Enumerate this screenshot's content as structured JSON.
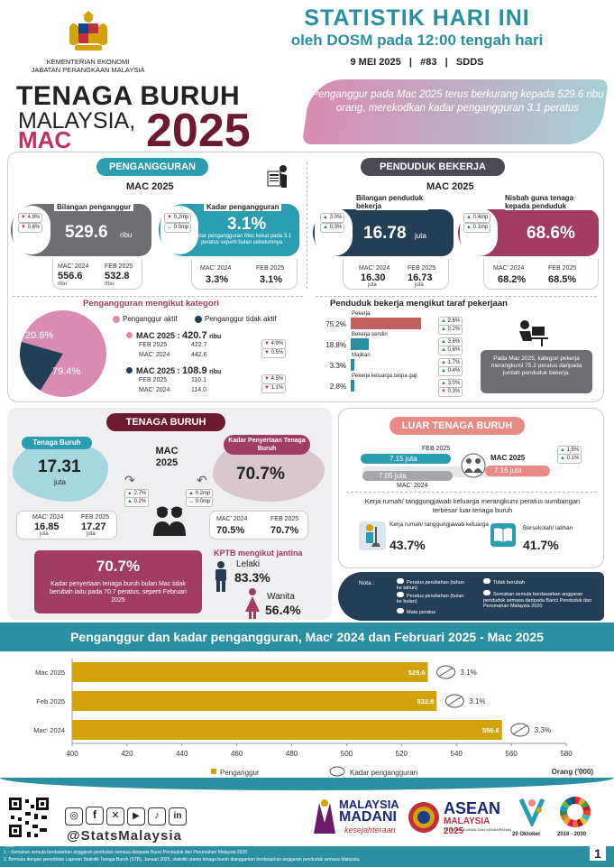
{
  "header": {
    "ministry_line1": "KEMENTERIAN EKONOMI",
    "ministry_line2": "JABATAN PERANGKAAN MALAYSIA",
    "title": "STATISTIK HARI INI",
    "subtitle": "oleh DOSM pada 12:00 tengah hari",
    "date_line": "9 MEI 2025   |   #83   |   SDDS"
  },
  "hero": {
    "line1": "TENAGA BURUH",
    "line2": "MALAYSIA,",
    "month": "MAC",
    "year": "2025",
    "banner": "Penganggur pada Mac 2025 terus berkurang kepada 529.6 ribu orang, merekodkan kadar pengangguran 3.1 peratus"
  },
  "unemployment": {
    "section": "PENGANGGURAN",
    "period": "MAC 2025",
    "count_label": "Bilangan penganggur",
    "count_value": "529.6",
    "count_unit": "ribu",
    "count_chg_yoy": "4.9%",
    "count_chg_mom": "0.6%",
    "rate_label": "Kadar pengangguran",
    "rate_value": "3.1%",
    "rate_chg_yoy": "0.2mp",
    "rate_chg_mom": "0.0mp",
    "rate_note": "Kadar pengangguran Mac kekal pada 3.1 peratus seperti bulan sebelumnya",
    "count_prev": [
      {
        "label": "MAC' 2024",
        "value": "556.6",
        "unit": "ribu"
      },
      {
        "label": "FEB 2025",
        "value": "532.8",
        "unit": "ribu"
      }
    ],
    "rate_prev": [
      {
        "label": "MAC' 2024",
        "value": "3.3%"
      },
      {
        "label": "FEB 2025",
        "value": "3.1%"
      }
    ]
  },
  "employment": {
    "section": "PENDUDUK BEKERJA",
    "period": "MAC 2025",
    "count_label": "Bilangan penduduk bekerja",
    "count_value": "16.78",
    "count_unit": "juta",
    "count_chg_yoy": "3.0%",
    "count_chg_mom": "0.3%",
    "ratio_label": "Nisbah guna tenaga kepada penduduk",
    "ratio_value": "68.6%",
    "ratio_chg_yoy": "0.4mp",
    "ratio_chg_mom": "0.1mp",
    "count_prev": [
      {
        "label": "MAC' 2024",
        "value": "16.30",
        "unit": "juta"
      },
      {
        "label": "FEB 2025",
        "value": "16.73",
        "unit": "juta"
      }
    ],
    "ratio_prev": [
      {
        "label": "MAC' 2024",
        "value": "68.2%"
      },
      {
        "label": "FEB 2025",
        "value": "68.5%"
      }
    ]
  },
  "unemp_category": {
    "title": "Pengangguran mengikut kategori",
    "legend_active": "Penganggur aktif",
    "legend_inactive": "Penganggur tidak aktif",
    "pie": [
      {
        "label": "79.4%",
        "value": 79.4,
        "color": "#d98bb1"
      },
      {
        "label": "20.6%",
        "value": 20.6,
        "color": "#243f55"
      }
    ],
    "active": {
      "head": "MAC 2025 : ",
      "value": "420.7",
      "unit": "ribu",
      "feb_label": "FEB 2025",
      "feb": "422.7",
      "mac_label": "MAC' 2024",
      "mac": "442.6",
      "chg1": "4.9%",
      "chg2": "0.5%"
    },
    "inactive": {
      "head": "MAC 2025 : ",
      "value": "108.9",
      "unit": "ribu",
      "feb_label": "FEB 2025",
      "feb": "110.1",
      "mac_label": "MAC' 2024",
      "mac": "114.0",
      "chg1": "4.5%",
      "chg2": "1.1%"
    }
  },
  "emp_status": {
    "title": "Penduduk bekerja mengikut taraf pekerjaan",
    "items": [
      {
        "pct": "75.2%",
        "value": 75.2,
        "label": "Pekerja",
        "c1": "2.6%",
        "c2": "0.2%",
        "color": "#c0605f"
      },
      {
        "pct": "18.8%",
        "value": 18.8,
        "label": "Bekerja sendiri",
        "c1": "3.6%",
        "c2": "0.6%",
        "color": "#2a8fa0"
      },
      {
        "pct": "3.3%",
        "value": 3.3,
        "label": "Majikan",
        "c1": "1.7%",
        "c2": "0.4%",
        "color": "#2a8fa0"
      },
      {
        "pct": "2.8%",
        "value": 2.8,
        "label": "Pekerja keluarga tanpa gaji",
        "c1": "3.0%",
        "c2": "0.3%",
        "color": "#2a8fa0"
      }
    ],
    "note": "Pada Mac 2025, kategori pekerja merangkumi 75.2 peratus daripada jumlah penduduk bekerja."
  },
  "labour_force": {
    "section": "TENAGA BURUH",
    "period": "MAC 2025",
    "lf_label": "Tenaga Buruh",
    "lf_value": "17.31",
    "lf_unit": "juta",
    "lf_chg1": "2.7%",
    "lf_chg2": "0.2%",
    "lfpr_label": "Kadar Penyertaan Tenaga Buruh",
    "lfpr_value": "70.7%",
    "lfpr_chg1": "0.2mp",
    "lfpr_chg2": "0.0mp",
    "lf_prev": [
      {
        "label": "MAC' 2024",
        "value": "16.85",
        "unit": "juta"
      },
      {
        "label": "FEB 2025",
        "value": "17.27",
        "unit": "juta"
      }
    ],
    "lfpr_prev": [
      {
        "label": "MAC' 2024",
        "value": "70.5%"
      },
      {
        "label": "FEB 2025",
        "value": "70.7%"
      }
    ],
    "box_value": "70.7%",
    "box_text": "Kadar penyertaan tenaga buruh bulan Mac tidak berubah iaitu pada 70.7 peratus, seperti Februari 2025",
    "gender_title": "KPTB mengikut jantina",
    "male_label": "Lelaki",
    "male_value": "83.3%",
    "female_label": "Wanita",
    "female_value": "56.4%"
  },
  "outside_lf": {
    "section": "LUAR TENAGA BURUH",
    "feb_label": "FEB 2025",
    "feb_value": "7.15 juta",
    "mac_label": "MAC 2025",
    "mac_value": "7.16 juta",
    "mac24_label": "MAC' 2024",
    "mac24_value": "7.05 juta",
    "chg1": "1.5%",
    "chg2": "0.1%",
    "desc": "Kerja rumah/ tanggungjawab keluarga merangkumi peratus sumbangan terbesar luar tenaga buruh",
    "home_label": "Kerja rumah/ tanggungjawab keluarga",
    "home_value": "43.7%",
    "edu_label": "Bersekolah/ latihan",
    "edu_value": "41.7%"
  },
  "notes": {
    "title": "Nota :",
    "n1": "Peratus perubahan (tahun ke tahun)",
    "n2": "Peratus perubahan (bulan ke bulan)",
    "n3": "Mata peratus",
    "n4": "Tidak berubah",
    "n5": "Semakan semula berdasarkan anggaran penduduk semasa daripada Banci Penduduk dan Perumahan Malaysia 2020"
  },
  "bottom_chart_title": "Penganggur dan kadar pengangguran, Macʳ 2024 dan Februari 2025 - Mac 2025",
  "chart_data": {
    "type": "bar",
    "categories": [
      "Mac 2025",
      "Feb 2025",
      "Macʳ 2024"
    ],
    "values": [
      529.6,
      532.8,
      556.6
    ],
    "value_labels": [
      "529.6",
      "532.8",
      "556.6"
    ],
    "rates": [
      "3.1%",
      "3.1%",
      "3.3%"
    ],
    "xlim": [
      400,
      580
    ],
    "xticks": [
      "400",
      "420",
      "440",
      "460",
      "480",
      "500",
      "520",
      "540",
      "560",
      "580"
    ],
    "xtick_values": [
      400,
      420,
      440,
      460,
      480,
      500,
      520,
      540,
      560,
      580
    ],
    "xlabel": "Orang ('000)",
    "legend_bar": "Penganggur",
    "legend_rate": "Kadar pengangguran",
    "bar_color": "#d4a20b"
  },
  "footer": {
    "handle": "@StatsMalaysia",
    "madani1": "MALAYSIA",
    "madani2": "MADANI",
    "madani3": "kesejahteraan",
    "asean1": "ASEAN",
    "asean2": "MALAYSIA 2025",
    "asean3": "KETERANGKUMAN DAN KEMAMPANAN",
    "oct": "20 Oktober",
    "sdg": "2016 - 2030",
    "note_title": "Nota",
    "note1": "1. ʳ Semakan semula berdasarkan anggaran penduduk semasa daripada Banci Penduduk dan Perumahan Malaysia 2020",
    "note2": "2. Bermula dengan penerbitan Laporan Statistik Tenaga Buruh (STB), Januari 2025, statistik utama tenaga buruh dianggarkan berdasarkan anggaran penduduk semasa Malaysia.",
    "page": "1"
  }
}
